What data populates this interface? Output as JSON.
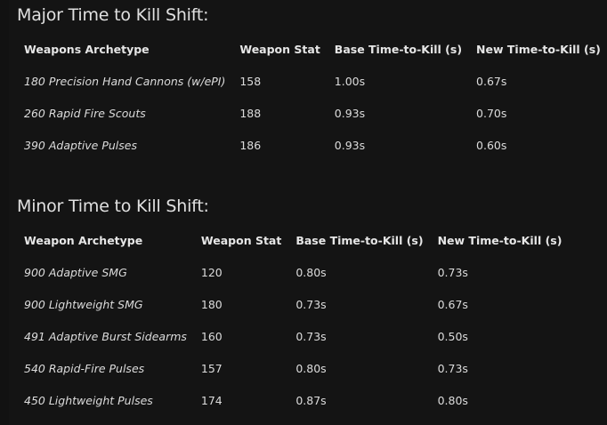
{
  "major": {
    "title": "Major Time to Kill Shift:",
    "headers": [
      "Weapons Archetype",
      "Weapon Stat",
      "Base Time-to-Kill (s)",
      "New Time-to-Kill (s)"
    ],
    "rows": [
      [
        "180 Precision Hand Cannons (w/ePI)",
        "158",
        "1.00s",
        "0.67s"
      ],
      [
        "260 Rapid Fire Scouts",
        "188",
        "0.93s",
        "0.70s"
      ],
      [
        "390 Adaptive Pulses",
        "186",
        "0.93s",
        "0.60s"
      ]
    ]
  },
  "minor": {
    "title": "Minor Time to Kill Shift:",
    "headers": [
      "Weapon Archetype",
      "Weapon Stat",
      "Base Time-to-Kill (s)",
      "New Time-to-Kill (s)"
    ],
    "rows": [
      [
        "900 Adaptive SMG",
        "120",
        "0.80s",
        "0.73s"
      ],
      [
        "900 Lightweight SMG",
        "180",
        "0.73s",
        "0.67s"
      ],
      [
        "491 Adaptive Burst Sidearms",
        "160",
        "0.73s",
        "0.50s"
      ],
      [
        "540 Rapid-Fire Pulses",
        "157",
        "0.80s",
        "0.73s"
      ],
      [
        "450 Lightweight Pulses",
        "174",
        "0.87s",
        "0.80s"
      ]
    ]
  }
}
